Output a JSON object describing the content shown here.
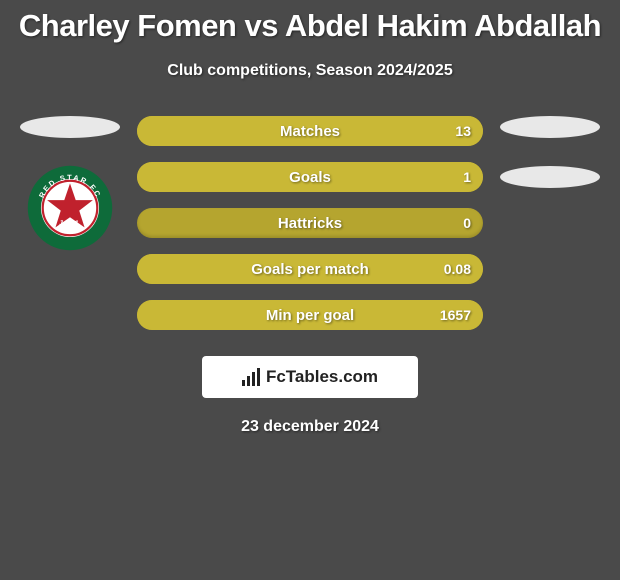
{
  "title": "Charley Fomen vs Abdel Hakim Abdallah",
  "subtitle": "Club competitions, Season 2024/2025",
  "date": "23 december 2024",
  "footer_brand": "FcTables.com",
  "colors": {
    "background": "#4a4a4a",
    "bar_base": "#b5a52f",
    "bar_fill": "#c9b836",
    "text": "#ffffff",
    "footer_bg": "#ffffff",
    "footer_text": "#222222"
  },
  "club_logo_left": {
    "outer_ring": "#0e6b3a",
    "inner_bg": "#ffffff",
    "star": "#c0212d",
    "text": "RED STAR FC",
    "year": "1897"
  },
  "stats": [
    {
      "label": "Matches",
      "right_value": "13",
      "right_fill_pct": 100
    },
    {
      "label": "Goals",
      "right_value": "1",
      "right_fill_pct": 100
    },
    {
      "label": "Hattricks",
      "right_value": "0",
      "right_fill_pct": 0
    },
    {
      "label": "Goals per match",
      "right_value": "0.08",
      "right_fill_pct": 100
    },
    {
      "label": "Min per goal",
      "right_value": "1657",
      "right_fill_pct": 100
    }
  ]
}
